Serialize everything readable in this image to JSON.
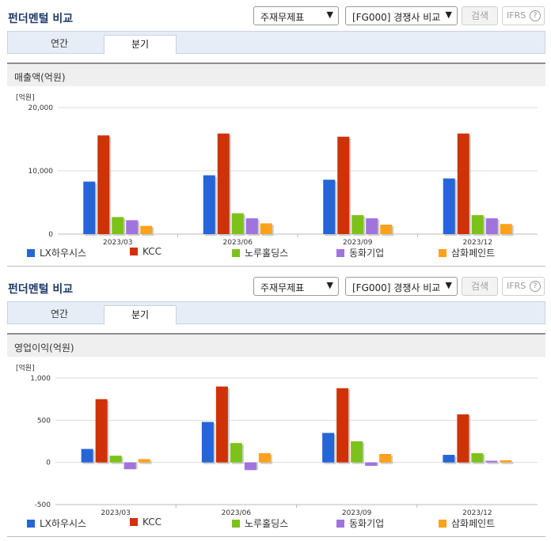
{
  "colors": {
    "grid": "#dddddd",
    "axis": "#bbbbbb",
    "series": [
      "#2565d8",
      "#cf3207",
      "#7dc21a",
      "#a173dd",
      "#ffa11b"
    ],
    "shadow": "#cccccc"
  },
  "legend": [
    "LX하우시스",
    "KCC",
    "노루홀딩스",
    "동화기업",
    "삼화페인트"
  ],
  "sections": [
    {
      "title": "펀더멘털 비교",
      "select1": "주재무제표",
      "select2": "[FG000] 경쟁사 비교",
      "search_label": "검색",
      "ifrs_label": "IFRS",
      "help_icon": "?",
      "tabs": [
        "연간",
        "분기"
      ],
      "active_tab": "분기",
      "metric_label": "매출액(억원)",
      "chart_data": {
        "type": "bar",
        "unit_label": "[억원]",
        "categories": [
          "2023/03",
          "2023/06",
          "2023/09",
          "2023/12"
        ],
        "ylim": [
          0,
          20000
        ],
        "yticks": [
          0,
          10000,
          20000
        ],
        "ytick_labels": [
          "0",
          "10,000",
          "20,000"
        ],
        "grid": true,
        "legend_position": "bottom",
        "series": [
          {
            "name": "LX하우시스",
            "values": [
              8300,
              9300,
              8600,
              8800
            ]
          },
          {
            "name": "KCC",
            "values": [
              15600,
              15900,
              15400,
              15900
            ]
          },
          {
            "name": "노루홀딩스",
            "values": [
              2700,
              3300,
              3000,
              3000
            ]
          },
          {
            "name": "동화기업",
            "values": [
              2200,
              2500,
              2500,
              2500
            ]
          },
          {
            "name": "삼화페인트",
            "values": [
              1300,
              1700,
              1500,
              1600
            ]
          }
        ]
      }
    },
    {
      "title": "펀더멘털 비교",
      "select1": "주재무제표",
      "select2": "[FG000] 경쟁사 비교",
      "search_label": "검색",
      "ifrs_label": "IFRS",
      "help_icon": "?",
      "tabs": [
        "연간",
        "분기"
      ],
      "active_tab": "분기",
      "metric_label": "영업이익(억원)",
      "chart_data": {
        "type": "bar",
        "unit_label": "[억원]",
        "categories": [
          "2023/03",
          "2023/06",
          "2023/09",
          "2023/12"
        ],
        "ylim": [
          -500,
          1000
        ],
        "yticks": [
          -500,
          0,
          500,
          1000
        ],
        "ytick_labels": [
          "-500",
          "0",
          "500",
          "1,000"
        ],
        "grid": true,
        "legend_position": "bottom",
        "series": [
          {
            "name": "LX하우시스",
            "values": [
              160,
              480,
              350,
              90
            ]
          },
          {
            "name": "KCC",
            "values": [
              750,
              900,
              880,
              570
            ]
          },
          {
            "name": "노루홀딩스",
            "values": [
              80,
              230,
              250,
              110
            ]
          },
          {
            "name": "동화기업",
            "values": [
              -80,
              -90,
              -40,
              20
            ]
          },
          {
            "name": "삼화페인트",
            "values": [
              40,
              110,
              100,
              25
            ]
          }
        ]
      }
    }
  ]
}
